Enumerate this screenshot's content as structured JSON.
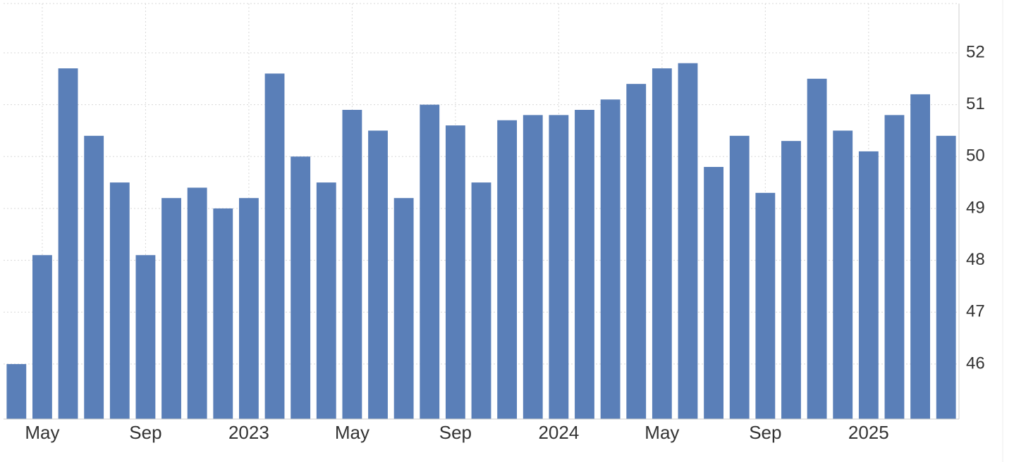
{
  "chart_data": {
    "type": "bar",
    "categories": [
      null,
      "May",
      null,
      null,
      null,
      "Sep",
      null,
      null,
      null,
      "2023",
      null,
      null,
      null,
      "May",
      null,
      null,
      null,
      "Sep",
      null,
      null,
      null,
      "2024",
      null,
      null,
      null,
      "May",
      null,
      null,
      null,
      "Sep",
      null,
      null,
      null,
      "2025",
      null,
      null,
      null
    ],
    "values": [
      46.0,
      48.1,
      51.7,
      50.4,
      49.5,
      48.1,
      49.2,
      49.4,
      49.0,
      49.2,
      51.6,
      50.0,
      49.5,
      50.9,
      50.5,
      49.2,
      51.0,
      50.6,
      49.5,
      50.7,
      50.8,
      50.8,
      50.9,
      51.1,
      51.4,
      51.7,
      51.8,
      49.8,
      50.4,
      49.3,
      50.3,
      51.5,
      50.5,
      50.1,
      50.8,
      51.2,
      50.4
    ],
    "color": "#5a7fb8",
    "ylim": [
      44.94,
      52.95
    ],
    "yticks": [
      46,
      47,
      48,
      49,
      50,
      51,
      52
    ],
    "grid": true
  }
}
